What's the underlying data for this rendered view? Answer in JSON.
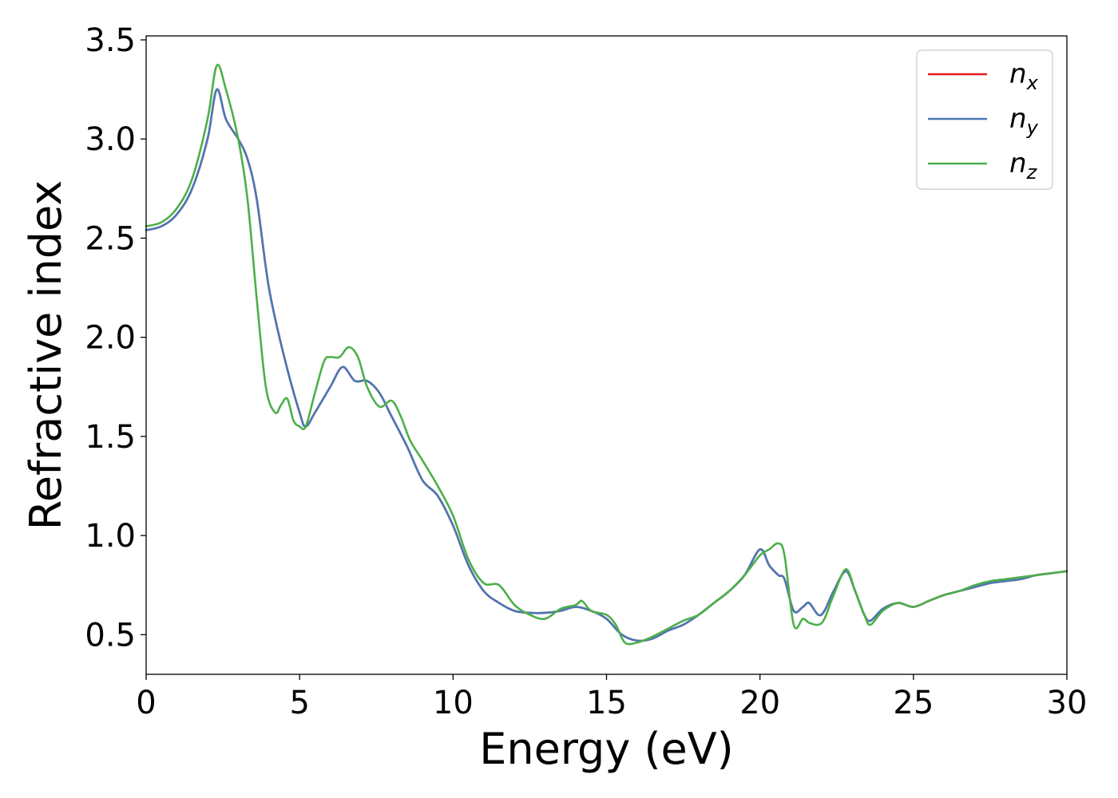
{
  "chart_data": {
    "type": "line",
    "xlabel": "Energy (eV)",
    "ylabel": "Refractive index",
    "xlim": [
      0,
      30
    ],
    "ylim": [
      0.3,
      3.52
    ],
    "xticks": [
      0,
      5,
      10,
      15,
      20,
      25,
      30
    ],
    "xtick_labels": [
      "0",
      "5",
      "10",
      "15",
      "20",
      "25",
      "30"
    ],
    "yticks": [
      0.5,
      1.0,
      1.5,
      2.0,
      2.5,
      3.0,
      3.5
    ],
    "ytick_labels": [
      "0.5",
      "1.0",
      "1.5",
      "2.0",
      "2.5",
      "3.0",
      "3.5"
    ],
    "grid": false,
    "legend_position": "top-right",
    "series": [
      {
        "name": "n",
        "subscript": "x",
        "color": "#e41a1c",
        "x": [
          0,
          0.5,
          1.0,
          1.5,
          2.0,
          2.3,
          2.6,
          3.0,
          3.3,
          3.6,
          4.0,
          4.5,
          5.0,
          5.2,
          5.5,
          6.0,
          6.4,
          6.8,
          7.2,
          7.6,
          8.0,
          8.5,
          9.0,
          9.5,
          10.0,
          10.5,
          11.0,
          11.5,
          12.0,
          12.5,
          13.0,
          13.5,
          14.0,
          14.5,
          15.0,
          15.5,
          16.0,
          16.5,
          17.0,
          17.5,
          18.0,
          18.5,
          19.0,
          19.5,
          20.0,
          20.3,
          20.6,
          20.8,
          21.1,
          21.4,
          21.6,
          21.9,
          22.1,
          22.4,
          22.8,
          23.1,
          23.4,
          23.6,
          24.0,
          24.5,
          25.0,
          25.5,
          26.0,
          26.5,
          27.0,
          27.5,
          28.0,
          28.5,
          29.0,
          29.5,
          30.0
        ],
        "y": [
          2.54,
          2.56,
          2.62,
          2.75,
          3.0,
          3.25,
          3.1,
          3.0,
          2.9,
          2.7,
          2.25,
          1.9,
          1.62,
          1.55,
          1.62,
          1.75,
          1.85,
          1.78,
          1.78,
          1.72,
          1.6,
          1.45,
          1.28,
          1.2,
          1.05,
          0.85,
          0.72,
          0.66,
          0.62,
          0.61,
          0.61,
          0.62,
          0.64,
          0.62,
          0.58,
          0.5,
          0.47,
          0.48,
          0.52,
          0.55,
          0.6,
          0.66,
          0.72,
          0.8,
          0.93,
          0.85,
          0.8,
          0.78,
          0.62,
          0.64,
          0.66,
          0.6,
          0.62,
          0.72,
          0.82,
          0.72,
          0.6,
          0.57,
          0.63,
          0.66,
          0.64,
          0.67,
          0.7,
          0.72,
          0.74,
          0.76,
          0.77,
          0.78,
          0.8,
          0.81,
          0.82
        ]
      },
      {
        "name": "n",
        "subscript": "y",
        "color": "#4a78b5",
        "x": [
          0,
          0.5,
          1.0,
          1.5,
          2.0,
          2.3,
          2.6,
          3.0,
          3.3,
          3.6,
          4.0,
          4.5,
          5.0,
          5.2,
          5.5,
          6.0,
          6.4,
          6.8,
          7.2,
          7.6,
          8.0,
          8.5,
          9.0,
          9.5,
          10.0,
          10.5,
          11.0,
          11.5,
          12.0,
          12.5,
          13.0,
          13.5,
          14.0,
          14.5,
          15.0,
          15.5,
          16.0,
          16.5,
          17.0,
          17.5,
          18.0,
          18.5,
          19.0,
          19.5,
          20.0,
          20.3,
          20.6,
          20.8,
          21.1,
          21.4,
          21.6,
          21.9,
          22.1,
          22.4,
          22.8,
          23.1,
          23.4,
          23.6,
          24.0,
          24.5,
          25.0,
          25.5,
          26.0,
          26.5,
          27.0,
          27.5,
          28.0,
          28.5,
          29.0,
          29.5,
          30.0
        ],
        "y": [
          2.54,
          2.56,
          2.62,
          2.75,
          3.0,
          3.25,
          3.1,
          3.0,
          2.9,
          2.7,
          2.25,
          1.9,
          1.62,
          1.55,
          1.62,
          1.75,
          1.85,
          1.78,
          1.78,
          1.72,
          1.6,
          1.45,
          1.28,
          1.2,
          1.05,
          0.85,
          0.72,
          0.66,
          0.62,
          0.61,
          0.61,
          0.62,
          0.64,
          0.62,
          0.58,
          0.5,
          0.47,
          0.48,
          0.52,
          0.55,
          0.6,
          0.66,
          0.72,
          0.8,
          0.93,
          0.85,
          0.8,
          0.78,
          0.62,
          0.64,
          0.66,
          0.6,
          0.62,
          0.72,
          0.82,
          0.72,
          0.6,
          0.57,
          0.63,
          0.66,
          0.64,
          0.67,
          0.7,
          0.72,
          0.74,
          0.76,
          0.77,
          0.78,
          0.8,
          0.81,
          0.82
        ]
      },
      {
        "name": "n",
        "subscript": "z",
        "color": "#4daf4a",
        "x": [
          0,
          0.5,
          1.0,
          1.5,
          2.0,
          2.3,
          2.6,
          3.0,
          3.3,
          3.6,
          3.9,
          4.2,
          4.4,
          4.6,
          4.8,
          5.0,
          5.2,
          5.5,
          5.8,
          6.0,
          6.3,
          6.6,
          6.9,
          7.2,
          7.6,
          8.0,
          8.3,
          8.6,
          9.0,
          9.5,
          10.0,
          10.5,
          11.0,
          11.5,
          12.0,
          12.5,
          13.0,
          13.5,
          14.0,
          14.2,
          14.5,
          15.0,
          15.3,
          15.6,
          16.0,
          16.5,
          17.0,
          17.5,
          18.0,
          18.5,
          19.0,
          19.5,
          20.0,
          20.3,
          20.6,
          20.8,
          21.1,
          21.4,
          21.6,
          21.9,
          22.1,
          22.4,
          22.8,
          23.1,
          23.4,
          23.6,
          24.0,
          24.5,
          25.0,
          25.5,
          26.0,
          26.5,
          27.0,
          27.5,
          28.0,
          28.5,
          29.0,
          29.5,
          30.0
        ],
        "y": [
          2.56,
          2.58,
          2.65,
          2.8,
          3.1,
          3.37,
          3.25,
          3.0,
          2.7,
          2.2,
          1.75,
          1.62,
          1.66,
          1.69,
          1.58,
          1.55,
          1.55,
          1.72,
          1.88,
          1.9,
          1.9,
          1.95,
          1.9,
          1.75,
          1.65,
          1.68,
          1.6,
          1.48,
          1.38,
          1.25,
          1.1,
          0.88,
          0.76,
          0.75,
          0.65,
          0.6,
          0.58,
          0.63,
          0.65,
          0.67,
          0.62,
          0.6,
          0.55,
          0.46,
          0.46,
          0.49,
          0.53,
          0.57,
          0.6,
          0.66,
          0.72,
          0.8,
          0.9,
          0.93,
          0.96,
          0.9,
          0.55,
          0.58,
          0.56,
          0.55,
          0.58,
          0.7,
          0.83,
          0.72,
          0.6,
          0.55,
          0.62,
          0.66,
          0.64,
          0.67,
          0.7,
          0.72,
          0.75,
          0.77,
          0.78,
          0.79,
          0.8,
          0.81,
          0.82
        ]
      }
    ]
  }
}
